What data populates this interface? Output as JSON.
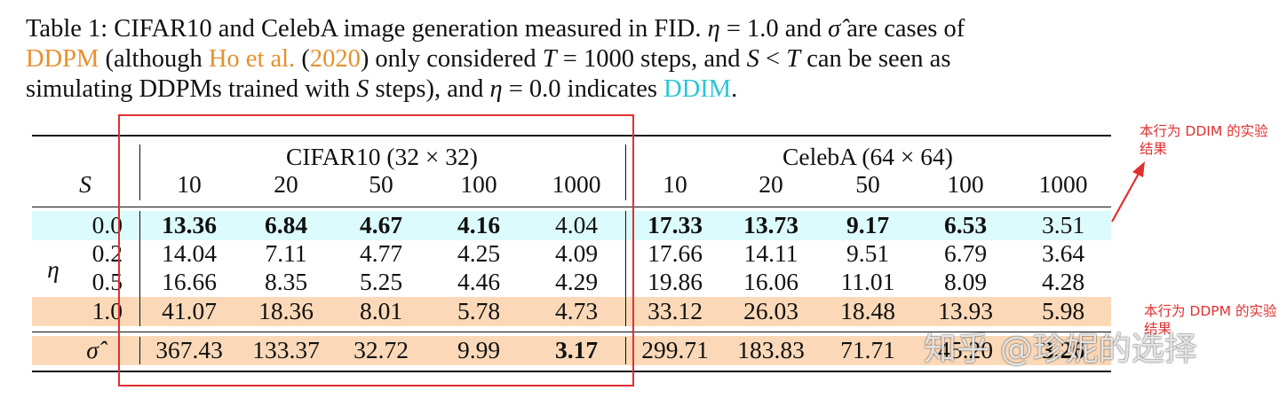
{
  "caption": {
    "line1_a": "Table 1: CIFAR10 and CelebA image generation measured in FID. ",
    "eta_sym": "η",
    "line1_b": " = 1.0 and ",
    "sigma_sym": "σ̂",
    "line1_c": " are cases of",
    "ddpm": "DDPM",
    "line2_a": " (although ",
    "ho": "Ho et al.",
    "line2_b": " (",
    "year": "2020",
    "line2_c": ") only considered ",
    "T_sym": "T",
    "line2_d": " = 1000 steps, and ",
    "S_sym": "S",
    "line2_e": " < ",
    "T_sym2": "T",
    "line2_f": " can be seen as",
    "line3_a": "simulating DDPMs trained with ",
    "S_sym2": "S",
    "line3_b": " steps), and ",
    "eta_sym2": "η",
    "line3_c": " = 0.0 indicates ",
    "ddim": "DDIM",
    "line3_d": "."
  },
  "table": {
    "group_cifar": "CIFAR10 (32 × 32)",
    "group_celeba": "CelebA (64 × 64)",
    "s_label": "S",
    "eta_label": "η",
    "steps": [
      "10",
      "20",
      "50",
      "100",
      "1000",
      "10",
      "20",
      "50",
      "100",
      "1000"
    ],
    "rows": [
      {
        "eta": "0.0",
        "cells": [
          {
            "v": "13.36",
            "b": true
          },
          {
            "v": "6.84",
            "b": true
          },
          {
            "v": "4.67",
            "b": true
          },
          {
            "v": "4.16",
            "b": true
          },
          {
            "v": "4.04",
            "b": false
          },
          {
            "v": "17.33",
            "b": true
          },
          {
            "v": "13.73",
            "b": true
          },
          {
            "v": "9.17",
            "b": true
          },
          {
            "v": "6.53",
            "b": true
          },
          {
            "v": "3.51",
            "b": false
          }
        ]
      },
      {
        "eta": "0.2",
        "cells": [
          {
            "v": "14.04",
            "b": false
          },
          {
            "v": "7.11",
            "b": false
          },
          {
            "v": "4.77",
            "b": false
          },
          {
            "v": "4.25",
            "b": false
          },
          {
            "v": "4.09",
            "b": false
          },
          {
            "v": "17.66",
            "b": false
          },
          {
            "v": "14.11",
            "b": false
          },
          {
            "v": "9.51",
            "b": false
          },
          {
            "v": "6.79",
            "b": false
          },
          {
            "v": "3.64",
            "b": false
          }
        ]
      },
      {
        "eta": "0.5",
        "cells": [
          {
            "v": "16.66",
            "b": false
          },
          {
            "v": "8.35",
            "b": false
          },
          {
            "v": "5.25",
            "b": false
          },
          {
            "v": "4.46",
            "b": false
          },
          {
            "v": "4.29",
            "b": false
          },
          {
            "v": "19.86",
            "b": false
          },
          {
            "v": "16.06",
            "b": false
          },
          {
            "v": "11.01",
            "b": false
          },
          {
            "v": "8.09",
            "b": false
          },
          {
            "v": "4.28",
            "b": false
          }
        ]
      },
      {
        "eta": "1.0",
        "cells": [
          {
            "v": "41.07",
            "b": false
          },
          {
            "v": "18.36",
            "b": false
          },
          {
            "v": "8.01",
            "b": false
          },
          {
            "v": "5.78",
            "b": false
          },
          {
            "v": "4.73",
            "b": false
          },
          {
            "v": "33.12",
            "b": false
          },
          {
            "v": "26.03",
            "b": false
          },
          {
            "v": "18.48",
            "b": false
          },
          {
            "v": "13.93",
            "b": false
          },
          {
            "v": "5.98",
            "b": false
          }
        ]
      },
      {
        "eta": "σ̂",
        "cells": [
          {
            "v": "367.43",
            "b": false
          },
          {
            "v": "133.37",
            "b": false
          },
          {
            "v": "32.72",
            "b": false
          },
          {
            "v": "9.99",
            "b": false
          },
          {
            "v": "3.17",
            "b": true
          },
          {
            "v": "299.71",
            "b": false
          },
          {
            "v": "183.83",
            "b": false
          },
          {
            "v": "71.71",
            "b": false
          },
          {
            "v": "45.20",
            "b": false
          },
          {
            "v": "3.26",
            "b": true
          }
        ]
      }
    ],
    "colors": {
      "cyan_row": "#dcfbfc",
      "orange_row": "#fbd9b8"
    }
  },
  "annotations": {
    "ddim_note": "本行为 DDIM 的实验结果",
    "ddpm_note": "本行为 DDPM 的实验结果",
    "color": "#e03030"
  },
  "watermark": "知乎 @珍妮的选择"
}
